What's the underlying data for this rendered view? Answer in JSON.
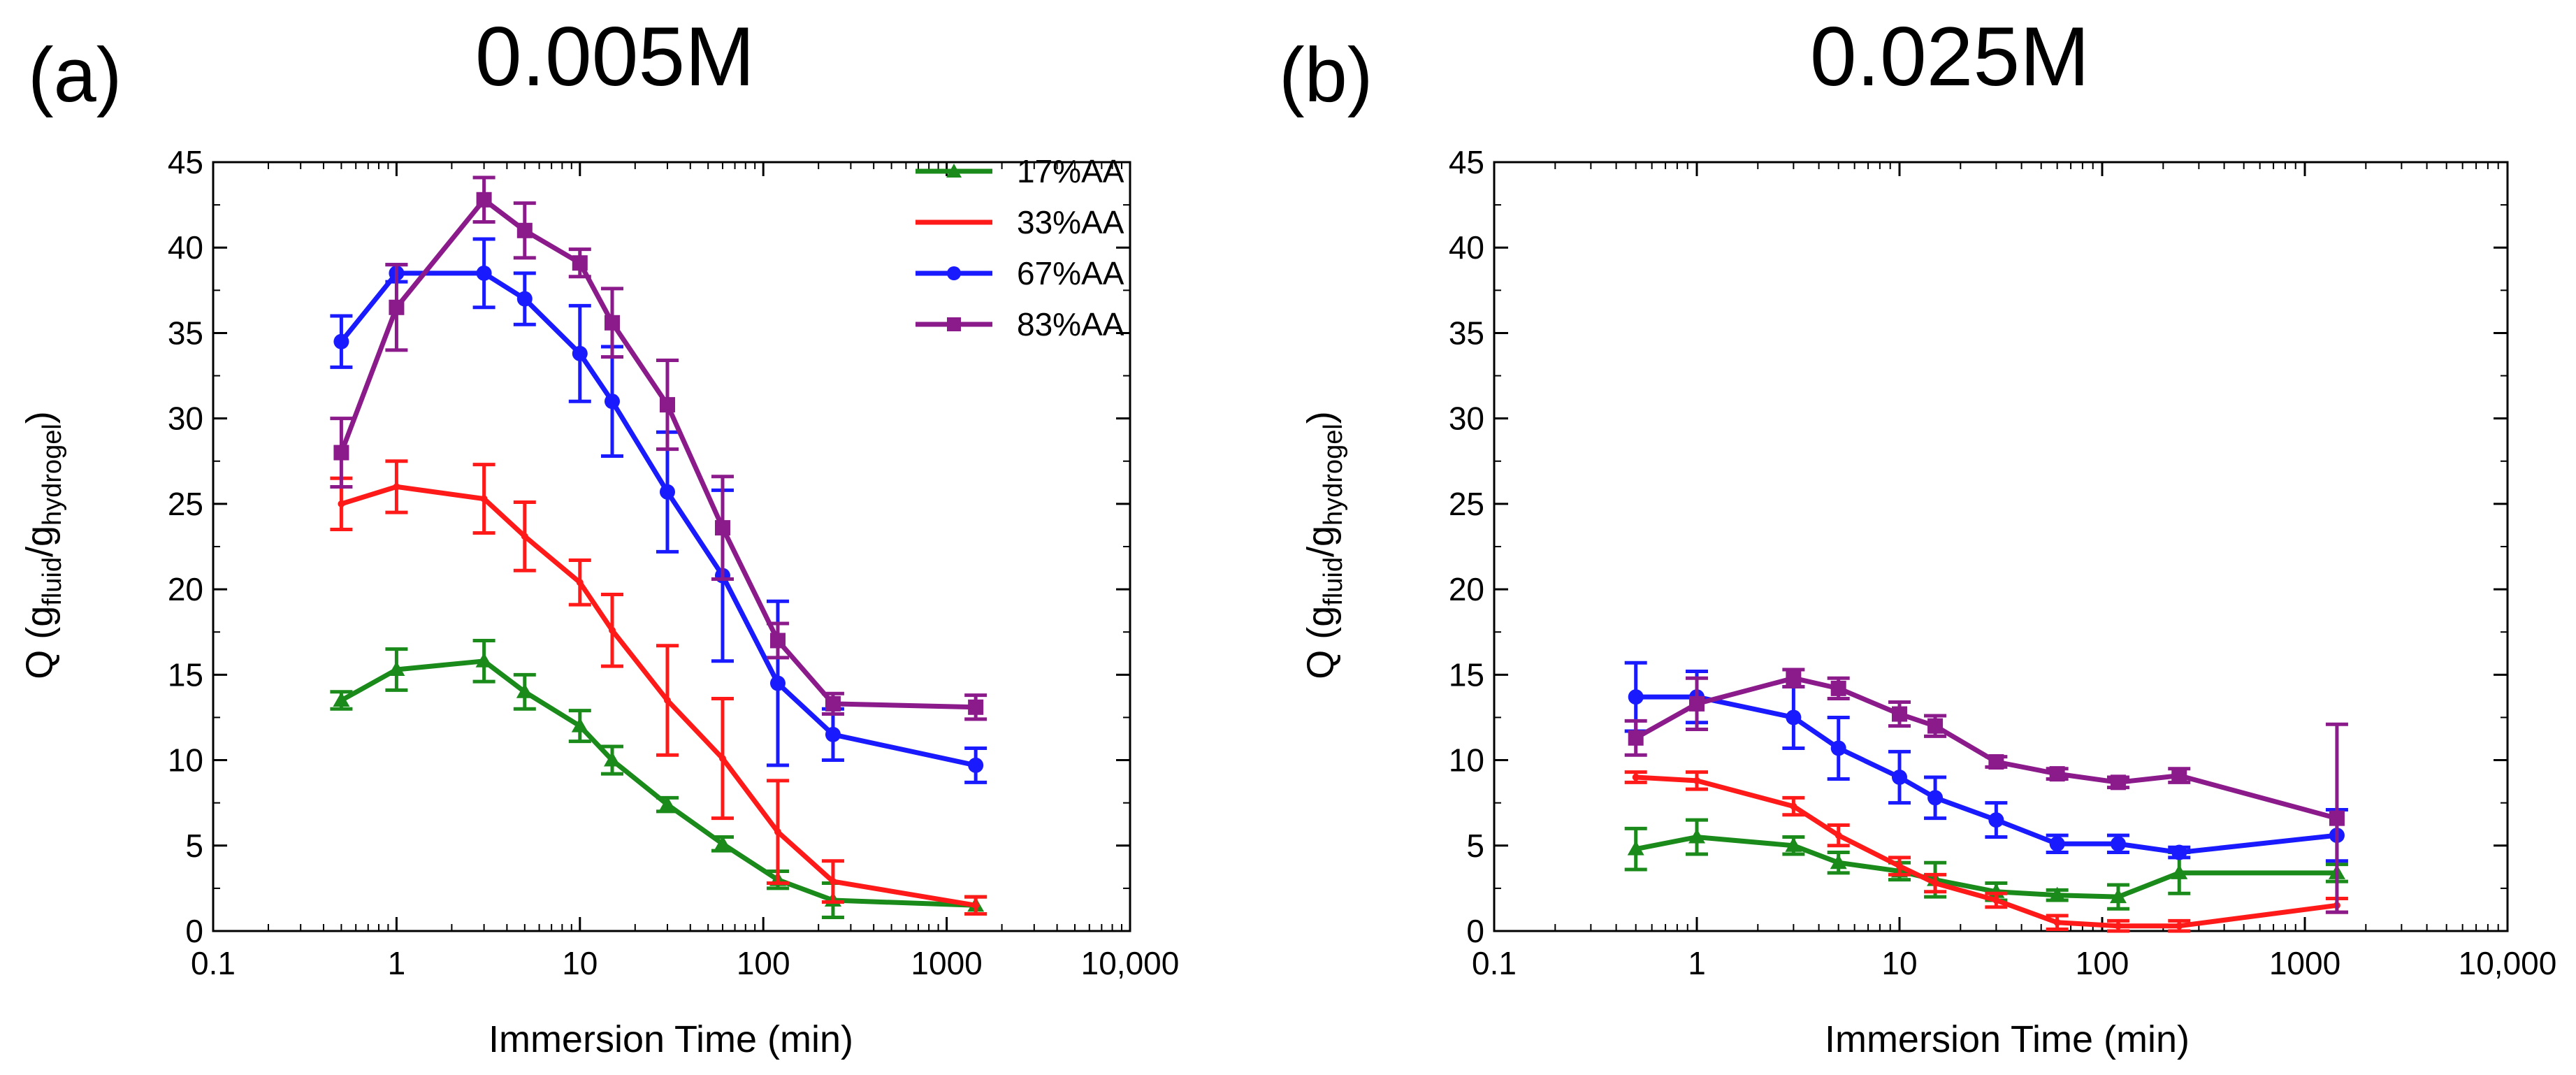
{
  "chart_data": [
    {
      "type": "line",
      "panel_label": "(a)",
      "title": "0.005M",
      "xlabel": "Immersion Time (min)",
      "ylabel": {
        "main": "Q (g",
        "sub1": "fluid",
        "sep": "/g",
        "sub2": "hydrogel",
        "close": ")"
      },
      "xscale": "log",
      "xlim": [
        0.1,
        10000
      ],
      "ylim": [
        0,
        45
      ],
      "xticks": [
        0.1,
        1,
        10,
        100,
        1000,
        10000
      ],
      "xtick_labels": [
        "0.1",
        "1",
        "10",
        "100",
        "1000",
        "10,000"
      ],
      "yticks": [
        0,
        5,
        10,
        15,
        20,
        25,
        30,
        35,
        40,
        45
      ],
      "ytick_labels": [
        "0",
        "5",
        "10",
        "15",
        "20",
        "25",
        "30",
        "35",
        "40",
        "45"
      ],
      "legend_position": "top-right",
      "x": [
        0.5,
        1,
        3,
        5,
        10,
        15,
        30,
        60,
        120,
        240,
        1440
      ],
      "series": [
        {
          "name": "17%AA",
          "color": "#1a8a1a",
          "marker": "triangle",
          "values": [
            13.5,
            15.3,
            15.8,
            14.0,
            12.0,
            10.0,
            7.4,
            5.1,
            3.0,
            1.8,
            1.5
          ],
          "errors": [
            0.5,
            1.2,
            1.2,
            1.0,
            0.9,
            0.8,
            0.4,
            0.4,
            0.5,
            1.0,
            0.5
          ]
        },
        {
          "name": "33%AA",
          "color": "#ff1a1a",
          "marker": "plus",
          "values": [
            25.0,
            26.0,
            25.3,
            23.1,
            20.4,
            17.6,
            13.5,
            10.1,
            5.8,
            2.9,
            1.5
          ],
          "errors": [
            1.5,
            1.5,
            2.0,
            2.0,
            1.3,
            2.1,
            3.2,
            3.5,
            3.0,
            1.2,
            0.5
          ]
        },
        {
          "name": "67%AA",
          "color": "#1a1aff",
          "marker": "circle",
          "values": [
            34.5,
            38.5,
            38.5,
            37.0,
            33.8,
            31.0,
            25.7,
            20.8,
            14.5,
            11.5,
            9.7
          ],
          "errors": [
            1.5,
            0.5,
            2.0,
            1.5,
            2.8,
            3.2,
            3.5,
            5.0,
            4.8,
            1.5,
            1.0
          ]
        },
        {
          "name": "83%AA",
          "color": "#8b1a8b",
          "marker": "square",
          "values": [
            28.0,
            36.5,
            42.8,
            41.0,
            39.1,
            35.6,
            30.8,
            23.6,
            17.0,
            13.3,
            13.1
          ],
          "errors": [
            2.0,
            2.5,
            1.3,
            1.6,
            0.8,
            2.0,
            2.6,
            3.0,
            1.0,
            0.6,
            0.7
          ]
        }
      ]
    },
    {
      "type": "line",
      "panel_label": "(b)",
      "title": "0.025M",
      "xlabel": "Immersion Time (min)",
      "ylabel": {
        "main": "Q (g",
        "sub1": "fluid",
        "sep": "/g",
        "sub2": "hydrogel",
        "close": ")"
      },
      "xscale": "log",
      "xlim": [
        0.1,
        10000
      ],
      "ylim": [
        0,
        45
      ],
      "xticks": [
        0.1,
        1,
        10,
        100,
        1000,
        10000
      ],
      "xtick_labels": [
        "0.1",
        "1",
        "10",
        "100",
        "1000",
        "10,000"
      ],
      "yticks": [
        0,
        5,
        10,
        15,
        20,
        25,
        30,
        35,
        40,
        45
      ],
      "ytick_labels": [
        "0",
        "5",
        "10",
        "15",
        "20",
        "25",
        "30",
        "35",
        "40",
        "45"
      ],
      "x": [
        0.5,
        1,
        3,
        5,
        10,
        15,
        30,
        60,
        120,
        240,
        1440
      ],
      "series": [
        {
          "name": "17%AA",
          "color": "#1a8a1a",
          "marker": "triangle",
          "values": [
            4.8,
            5.5,
            5.0,
            4.0,
            3.5,
            3.0,
            2.3,
            2.1,
            2.0,
            3.4,
            3.4
          ],
          "errors": [
            1.2,
            1.0,
            0.5,
            0.6,
            0.5,
            1.0,
            0.5,
            0.3,
            0.7,
            1.2,
            0.5
          ]
        },
        {
          "name": "33%AA",
          "color": "#ff1a1a",
          "marker": "plus",
          "values": [
            9.0,
            8.8,
            7.3,
            5.6,
            3.8,
            2.8,
            1.8,
            0.5,
            0.3,
            0.3,
            1.5
          ],
          "errors": [
            0.3,
            0.5,
            0.5,
            0.6,
            0.5,
            0.5,
            0.4,
            0.4,
            0.3,
            0.3,
            0.4
          ]
        },
        {
          "name": "67%AA",
          "color": "#1a1aff",
          "marker": "circle",
          "values": [
            13.7,
            13.7,
            12.5,
            10.7,
            9.0,
            7.8,
            6.5,
            5.1,
            5.1,
            4.6,
            5.6
          ],
          "errors": [
            2.0,
            1.5,
            1.8,
            1.8,
            1.5,
            1.2,
            1.0,
            0.5,
            0.5,
            0.3,
            1.5
          ]
        },
        {
          "name": "83%AA",
          "color": "#8b1a8b",
          "marker": "square",
          "values": [
            11.3,
            13.3,
            14.8,
            14.2,
            12.7,
            12.0,
            9.9,
            9.2,
            8.7,
            9.1,
            6.6
          ],
          "errors": [
            1.0,
            1.5,
            0.5,
            0.6,
            0.7,
            0.6,
            0.3,
            0.3,
            0.3,
            0.4,
            5.5
          ]
        }
      ]
    }
  ]
}
